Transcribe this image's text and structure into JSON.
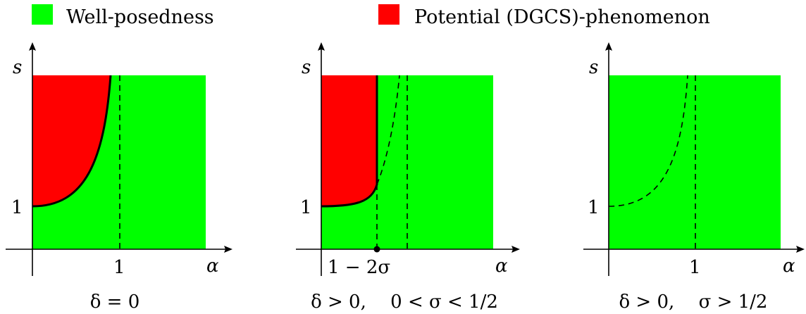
{
  "legend": {
    "items": [
      {
        "label": "Well-posedness",
        "color": "#00ff00"
      },
      {
        "label": "Potential (DGCS)-phenomenon",
        "color": "#ff0000"
      }
    ]
  },
  "axes": {
    "x_label": "α",
    "y_label": "s"
  },
  "panels": [
    {
      "caption_a": "δ = 0",
      "caption_b": "",
      "y_tick": "1",
      "x_tick": "1"
    },
    {
      "caption_a": "δ > 0,",
      "caption_b": "0 < σ < 1/2",
      "y_tick": "1",
      "x_tick": "1 − 2σ"
    },
    {
      "caption_a": "δ > 0,",
      "caption_b": "σ > 1/2",
      "y_tick": "1",
      "x_tick": "1"
    }
  ],
  "colors": {
    "green": "#00ff00",
    "red": "#ff0000",
    "ink": "#000000"
  }
}
